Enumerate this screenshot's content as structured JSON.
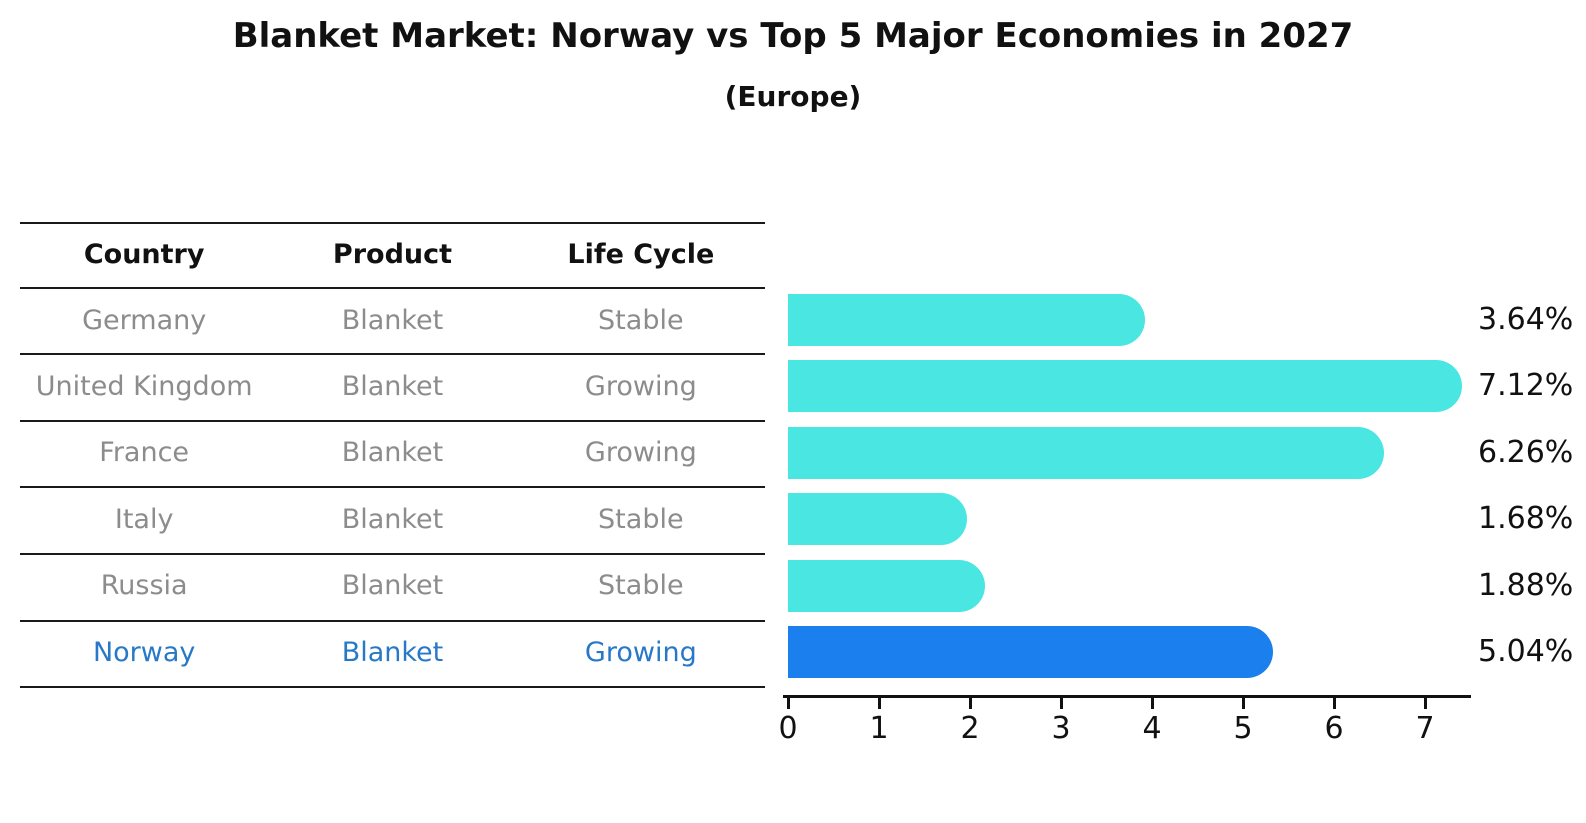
{
  "title": "Blanket Market: Norway vs Top 5 Major Economies in 2027",
  "subtitle": "(Europe)",
  "colors": {
    "bar": "#49E6E2",
    "highlight_bar": "#1C7FEE",
    "highlight_text": "#2878C8",
    "row_text": "#8C8C8C",
    "heading_text": "#111111",
    "axis": "#111111"
  },
  "table": {
    "headers": [
      "Country",
      "Product",
      "Life Cycle"
    ],
    "rows": [
      {
        "country": "Germany",
        "product": "Blanket",
        "life_cycle": "Stable",
        "highlight": false
      },
      {
        "country": "United Kingdom",
        "product": "Blanket",
        "life_cycle": "Growing",
        "highlight": false
      },
      {
        "country": "France",
        "product": "Blanket",
        "life_cycle": "Growing",
        "highlight": false
      },
      {
        "country": "Italy",
        "product": "Blanket",
        "life_cycle": "Stable",
        "highlight": false
      },
      {
        "country": "Russia",
        "product": "Blanket",
        "life_cycle": "Stable",
        "highlight": false
      },
      {
        "country": "Norway",
        "product": "Blanket",
        "life_cycle": "Growing",
        "highlight": true
      }
    ]
  },
  "chart_data": {
    "type": "bar",
    "orientation": "horizontal",
    "title": "Blanket Market: Norway vs Top 5 Major Economies in 2027",
    "subtitle": "(Europe)",
    "categories": [
      "Germany",
      "United Kingdom",
      "France",
      "Italy",
      "Russia",
      "Norway"
    ],
    "values": [
      3.64,
      7.12,
      6.26,
      1.68,
      1.88,
      5.04
    ],
    "value_labels": [
      "3.64%",
      "7.12%",
      "6.26%",
      "1.68%",
      "1.88%",
      "5.04%"
    ],
    "unit": "%",
    "highlight_index": 5,
    "x_ticks": [
      0,
      1,
      2,
      3,
      4,
      5,
      6,
      7
    ],
    "xlim": [
      0,
      7.5
    ],
    "grid": false,
    "legend": false,
    "xlabel": "",
    "ylabel": ""
  }
}
